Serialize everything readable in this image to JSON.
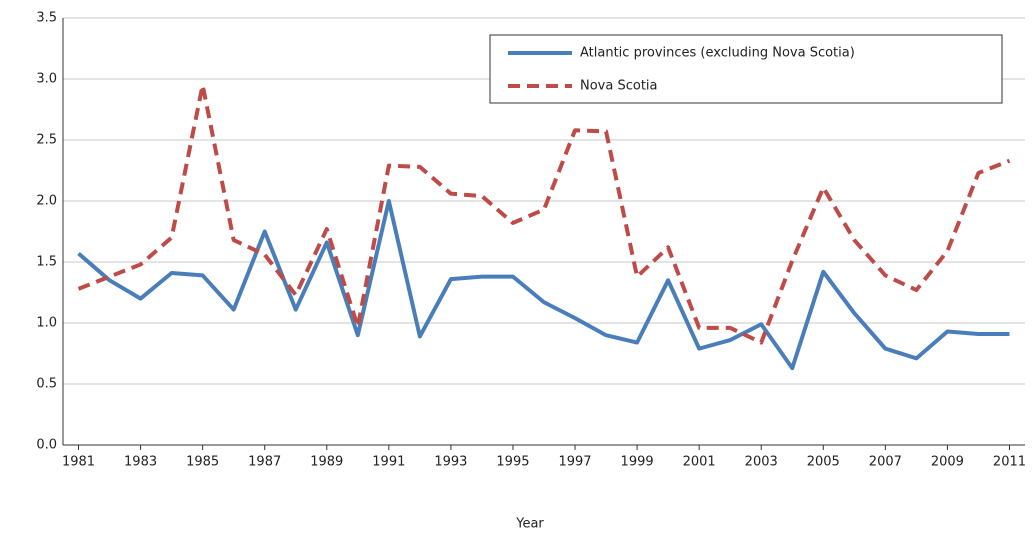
{
  "chart_data": {
    "type": "line",
    "x": [
      1981,
      1982,
      1983,
      1984,
      1985,
      1986,
      1987,
      1988,
      1989,
      1990,
      1991,
      1992,
      1993,
      1994,
      1995,
      1996,
      1997,
      1998,
      1999,
      2000,
      2001,
      2002,
      2003,
      2004,
      2005,
      2006,
      2007,
      2008,
      2009,
      2010,
      2011
    ],
    "series": [
      {
        "name": "Atlantic provinces (excluding Nova Scotia)",
        "color": "#4a7ebb",
        "dash": false,
        "values": [
          1.57,
          1.35,
          1.2,
          1.41,
          1.39,
          1.11,
          1.75,
          1.11,
          1.66,
          0.9,
          2.0,
          0.89,
          1.36,
          1.38,
          1.38,
          1.17,
          1.04,
          0.9,
          0.84,
          1.35,
          0.79,
          0.86,
          0.99,
          0.63,
          1.42,
          1.08,
          0.79,
          0.71,
          0.93,
          0.91,
          0.91
        ]
      },
      {
        "name": "Nova Scotia",
        "color": "#be4b48",
        "dash": true,
        "values": [
          1.28,
          1.38,
          1.48,
          1.7,
          2.95,
          1.68,
          1.56,
          1.23,
          1.77,
          0.97,
          2.29,
          2.28,
          2.06,
          2.04,
          1.82,
          1.93,
          2.58,
          2.57,
          1.38,
          1.62,
          0.96,
          0.96,
          0.84,
          1.51,
          2.11,
          1.68,
          1.39,
          1.27,
          1.59,
          2.23,
          2.33
        ]
      }
    ],
    "xlabel": "Year",
    "xlim": [
      1980.5,
      2011.5
    ],
    "xticks": [
      1981,
      1983,
      1985,
      1987,
      1989,
      1991,
      1993,
      1995,
      1997,
      1999,
      2001,
      2003,
      2005,
      2007,
      2009,
      2011
    ],
    "ylim": [
      0,
      3.5
    ],
    "yticks": [
      {
        "value": 0,
        "label": "0.0"
      },
      0.5,
      {
        "value": 1,
        "label": "1.0"
      },
      1.5,
      {
        "value": 2,
        "label": "2.0"
      },
      2.5,
      {
        "value": 3,
        "label": "3.0"
      },
      3.5
    ],
    "grid": true,
    "legend": "top-right"
  }
}
